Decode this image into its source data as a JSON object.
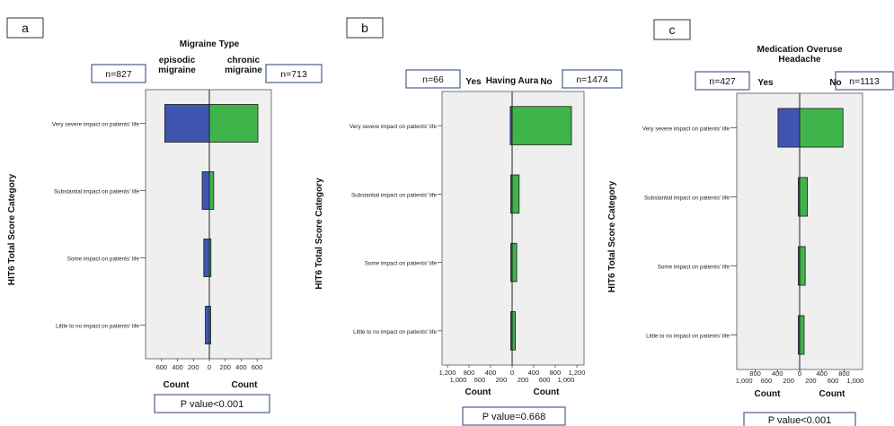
{
  "colors": {
    "left": "#3f55b0",
    "right": "#3fb44a",
    "panel_bg": "#efefef",
    "box_border": "#4a5f8a"
  },
  "chart_data": [
    {
      "type": "bar",
      "panel_label": "a",
      "title": "Migraine Type",
      "ylabel": "HIT6 Total Score Category",
      "categories": [
        "Very severe impact on patients' life",
        "Substantial impact on patients' life",
        "Some impact on patients' life",
        "Little to no impact on patients' life"
      ],
      "series": [
        {
          "name": "episodic migraine",
          "values": [
            560,
            90,
            70,
            50
          ]
        },
        {
          "name": "chronic migraine",
          "values": [
            610,
            55,
            20,
            10
          ]
        }
      ],
      "left_n": "n=827",
      "right_n": "n=713",
      "left_header": [
        "episodic",
        "migraine"
      ],
      "right_header": [
        "chronic",
        "migraine"
      ],
      "xticks_left": [
        "600",
        "400",
        "200"
      ],
      "xticks_right": [
        "0",
        "200",
        "400",
        "600"
      ],
      "xticks_left_row2": [],
      "xlabel_left": "Count",
      "xlabel_right": "Count",
      "xlim": [
        -700,
        700
      ],
      "p_value": "P value<0.001"
    },
    {
      "type": "bar",
      "panel_label": "b",
      "title": "Having Aura",
      "ylabel": "HIT6 Total Score Category",
      "categories": [
        "Very severe impact on patients' life",
        "Substantial impact on patients' life",
        "Some impact on patients' life",
        "Little to no impact on patients' life"
      ],
      "series": [
        {
          "name": "Yes",
          "values": [
            35,
            8,
            5,
            3
          ]
        },
        {
          "name": "No",
          "values": [
            1100,
            130,
            85,
            60
          ]
        }
      ],
      "left_n": "n=66",
      "right_n": "n=1474",
      "left_header": [
        "Yes"
      ],
      "right_header": [
        "No"
      ],
      "xticks_left": [
        "1,200",
        "800",
        "400"
      ],
      "xticks_right": [
        "0",
        "400",
        "800",
        "1,200"
      ],
      "xticks_left_row2": [
        "1,000",
        "600",
        "200"
      ],
      "xticks_right_row2": [
        "200",
        "600",
        "1,000"
      ],
      "xlabel_left": "Count",
      "xlabel_right": "Count",
      "xlim": [
        -1300,
        1300
      ],
      "p_value": "P value=0.668"
    },
    {
      "type": "bar",
      "panel_label": "c",
      "title": "Medication Overuse Headache",
      "title_lines": [
        "Medication Overuse",
        "Headache"
      ],
      "ylabel": "HIT6 Total Score Category",
      "categories": [
        "Very severe impact on patients' life",
        "Substantial impact on patients' life",
        "Some impact on patients' life",
        "Little to no impact on patients' life"
      ],
      "series": [
        {
          "name": "Yes",
          "values": [
            390,
            20,
            10,
            5
          ]
        },
        {
          "name": "No",
          "values": [
            780,
            140,
            100,
            80
          ]
        }
      ],
      "left_n": "n=427",
      "right_n": "n=1113",
      "left_header": [
        "Yes"
      ],
      "right_header": [
        "No"
      ],
      "xticks_left": [
        "800",
        "400"
      ],
      "xticks_right": [
        "0",
        "400",
        "800"
      ],
      "xticks_left_row2": [
        "1,000",
        "600",
        "200"
      ],
      "xticks_right_row2": [
        "200",
        "600",
        "1,000"
      ],
      "xlabel_left": "Count",
      "xlabel_right": "Count",
      "xlim": [
        -1100,
        1100
      ],
      "p_value": "P value<0.001"
    }
  ]
}
